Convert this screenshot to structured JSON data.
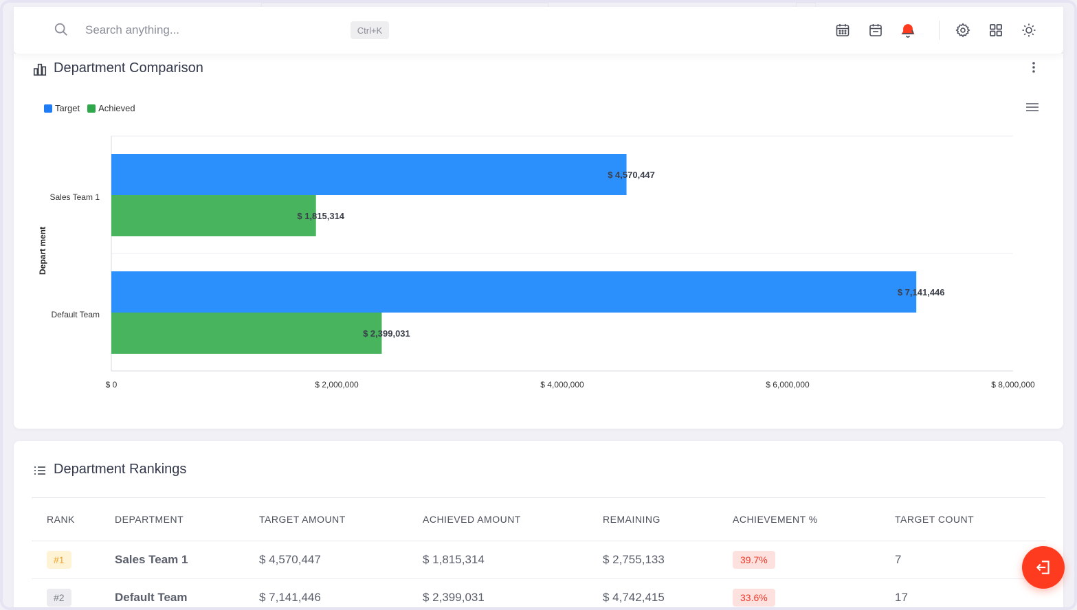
{
  "topbar": {
    "search_placeholder": "Search anything...",
    "shortcut": "Ctrl+K",
    "icons": [
      "search-icon",
      "calendar-grid-icon",
      "calendar-event-icon",
      "notification-bell-icon",
      "settings-gear-icon",
      "apps-grid-icon",
      "theme-sun-icon"
    ],
    "bell_accent": "#ff3b1f"
  },
  "comparison": {
    "title": "Department Comparison",
    "icons": [
      "bar-chart-icon",
      "kebab-menu-icon",
      "hamburger-menu-icon"
    ]
  },
  "chart_data": {
    "type": "bar",
    "orientation": "horizontal",
    "categories": [
      "Sales Team 1",
      "Default Team"
    ],
    "series": [
      {
        "name": "Target",
        "values": [
          4570447,
          7141446
        ],
        "color": "#2b8ffc"
      },
      {
        "name": "Achieved",
        "values": [
          1815314,
          2399031
        ],
        "color": "#48b45e"
      }
    ],
    "data_labels": [
      [
        "$ 4,570,447",
        "$ 7,141,446"
      ],
      [
        "$ 1,815,314",
        "$ 2,399,031"
      ]
    ],
    "xlim": [
      0,
      8000000
    ],
    "x_ticks": [
      0,
      2000000,
      4000000,
      6000000,
      8000000
    ],
    "x_tick_labels": [
      "$ 0",
      "$ 2,000,000",
      "$ 4,000,000",
      "$ 6,000,000",
      "$ 8,000,000"
    ],
    "ylabel": "Depart ment",
    "xlabel": "",
    "legend_position": "top-left",
    "grid": true
  },
  "rankings": {
    "title": "Department Rankings",
    "icon": "list-icon",
    "columns": [
      "RANK",
      "DEPARTMENT",
      "TARGET AMOUNT",
      "ACHIEVED AMOUNT",
      "REMAINING",
      "ACHIEVEMENT %",
      "TARGET COUNT"
    ],
    "rows": [
      {
        "rank": "#1",
        "department": "Sales Team 1",
        "target": "$ 4,570,447",
        "achieved": "$ 1,815,314",
        "remaining": "$ 2,755,133",
        "pct": "39.7%",
        "count": "7",
        "rank_bg": "#fff3d6",
        "rank_color": "#f0a32a"
      },
      {
        "rank": "#2",
        "department": "Default Team",
        "target": "$ 7,141,446",
        "achieved": "$ 2,399,031",
        "remaining": "$ 4,742,415",
        "pct": "33.6%",
        "count": "17",
        "rank_bg": "#ececf0",
        "rank_color": "#7d808a"
      }
    ]
  },
  "fab": {
    "icon": "logout-icon"
  }
}
